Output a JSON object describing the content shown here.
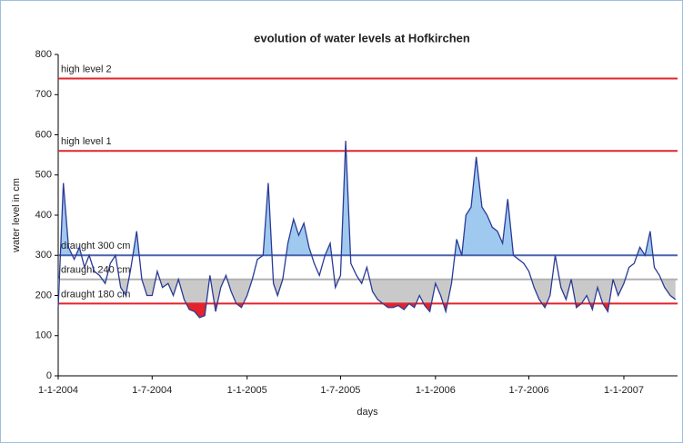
{
  "chart_data": {
    "type": "line",
    "title": "evolution of water levels at Hofkirchen",
    "x_label": "days",
    "y_label": "water level in cm",
    "x": [
      "1-1-2004",
      "11-1-2004",
      "21-1-2004",
      "1-2-2004",
      "11-2-2004",
      "21-2-2004",
      "1-3-2004",
      "11-3-2004",
      "21-3-2004",
      "1-4-2004",
      "11-4-2004",
      "21-4-2004",
      "1-5-2004",
      "11-5-2004",
      "21-5-2004",
      "1-6-2004",
      "11-6-2004",
      "21-6-2004",
      "1-7-2004",
      "11-7-2004",
      "21-7-2004",
      "1-8-2004",
      "11-8-2004",
      "21-8-2004",
      "1-9-2004",
      "11-9-2004",
      "21-9-2004",
      "1-10-2004",
      "11-10-2004",
      "21-10-2004",
      "1-11-2004",
      "11-11-2004",
      "21-11-2004",
      "1-12-2004",
      "11-12-2004",
      "21-12-2004",
      "1-1-2005",
      "11-1-2005",
      "21-1-2005",
      "1-2-2005",
      "11-2-2005",
      "21-2-2005",
      "1-3-2005",
      "11-3-2005",
      "21-3-2005",
      "1-4-2005",
      "11-4-2005",
      "21-4-2005",
      "1-5-2005",
      "11-5-2005",
      "21-5-2005",
      "1-6-2005",
      "11-6-2005",
      "21-6-2005",
      "1-7-2005",
      "11-7-2005",
      "21-7-2005",
      "1-8-2005",
      "11-8-2005",
      "21-8-2005",
      "1-9-2005",
      "11-9-2005",
      "21-9-2005",
      "1-10-2005",
      "11-10-2005",
      "21-10-2005",
      "1-11-2005",
      "11-11-2005",
      "21-11-2005",
      "1-12-2005",
      "11-12-2005",
      "21-12-2005",
      "1-1-2006",
      "11-1-2006",
      "21-1-2006",
      "1-2-2006",
      "11-2-2006",
      "21-2-2006",
      "1-3-2006",
      "11-3-2006",
      "21-3-2006",
      "1-4-2006",
      "11-4-2006",
      "21-4-2006",
      "1-5-2006",
      "11-5-2006",
      "21-5-2006",
      "1-6-2006",
      "11-6-2006",
      "21-6-2006",
      "1-7-2006",
      "11-7-2006",
      "21-7-2006",
      "1-8-2006",
      "11-8-2006",
      "21-8-2006",
      "1-9-2006",
      "11-9-2006",
      "21-9-2006",
      "1-10-2006",
      "11-10-2006",
      "21-10-2006",
      "1-11-2006",
      "11-11-2006",
      "21-11-2006",
      "1-12-2006",
      "11-12-2006",
      "21-12-2006",
      "1-1-2007",
      "11-1-2007",
      "21-1-2007",
      "1-2-2007",
      "11-2-2007",
      "21-2-2007",
      "1-3-2007",
      "11-3-2007",
      "21-3-2007",
      "1-4-2007",
      "11-4-2007"
    ],
    "values": [
      170,
      480,
      320,
      290,
      320,
      270,
      300,
      260,
      250,
      230,
      280,
      300,
      220,
      200,
      270,
      360,
      240,
      200,
      200,
      260,
      220,
      230,
      200,
      240,
      190,
      165,
      160,
      145,
      150,
      250,
      160,
      220,
      250,
      210,
      180,
      170,
      200,
      240,
      290,
      300,
      480,
      230,
      200,
      240,
      330,
      390,
      350,
      380,
      320,
      280,
      250,
      300,
      330,
      220,
      250,
      585,
      280,
      250,
      230,
      270,
      210,
      190,
      180,
      170,
      170,
      175,
      165,
      180,
      170,
      200,
      175,
      160,
      230,
      200,
      160,
      230,
      340,
      300,
      400,
      420,
      545,
      420,
      400,
      370,
      360,
      330,
      440,
      300,
      290,
      280,
      260,
      220,
      190,
      170,
      200,
      300,
      220,
      190,
      240,
      170,
      180,
      200,
      165,
      220,
      180,
      160,
      240,
      200,
      230,
      270,
      280,
      320,
      300,
      360,
      270,
      250,
      220,
      200,
      190
    ],
    "color": "#2b3a97",
    "xlim": [
      "1-1-2004",
      "15-4-2007"
    ],
    "xticks": [
      "1-1-2004",
      "1-7-2004",
      "1-1-2005",
      "1-7-2005",
      "1-1-2006",
      "1-7-2006",
      "1-1-2007"
    ],
    "ylim": [
      0,
      800
    ],
    "yticks": [
      0,
      100,
      200,
      300,
      400,
      500,
      600,
      700,
      800
    ],
    "reference_lines": [
      {
        "name": "high level 2",
        "value": 740,
        "color": "#e3242b"
      },
      {
        "name": "high level 1",
        "value": 560,
        "color": "#e3242b"
      },
      {
        "name": "draught 300 cm",
        "value": 300,
        "color": "#4a63ad",
        "fill_side": "above",
        "fill_color": "#9fc9ee"
      },
      {
        "name": "draught 240 cm",
        "value": 240,
        "color": "#b0b0b0",
        "fill_side": "below",
        "fill_color": "#c9c9c9"
      },
      {
        "name": "draught 180 cm",
        "value": 180,
        "color": "#e3242b",
        "fill_side": "below",
        "fill_color": "#e3242b"
      }
    ]
  }
}
